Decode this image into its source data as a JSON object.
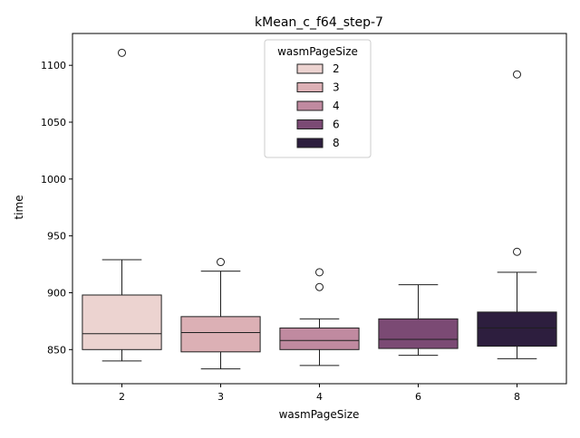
{
  "chart_data": {
    "type": "box",
    "title": "kMean_c_f64_step-7",
    "xlabel": "wasmPageSize",
    "ylabel": "time",
    "categories": [
      "2",
      "3",
      "4",
      "6",
      "8"
    ],
    "ylim": [
      820,
      1128
    ],
    "yticks": [
      850,
      900,
      950,
      1000,
      1050,
      1100
    ],
    "grid": false,
    "legend": {
      "title": "wasmPageSize",
      "placement": "upper-center",
      "entries": [
        "2",
        "3",
        "4",
        "6",
        "8"
      ]
    },
    "boxes": [
      {
        "category": "2",
        "whisker_low": 840,
        "q1": 850,
        "median": 864,
        "q3": 898,
        "whisker_high": 929,
        "outliers": [
          1111
        ],
        "color": "#ecd3d0"
      },
      {
        "category": "3",
        "whisker_low": 833,
        "q1": 848,
        "median": 865,
        "q3": 879,
        "whisker_high": 919,
        "outliers": [
          927
        ],
        "color": "#dcb0b5"
      },
      {
        "category": "4",
        "whisker_low": 836,
        "q1": 850,
        "median": 858,
        "q3": 869,
        "whisker_high": 877,
        "outliers": [
          905,
          918
        ],
        "color": "#c08aa0"
      },
      {
        "category": "6",
        "whisker_low": 845,
        "q1": 851,
        "median": 859,
        "q3": 877,
        "whisker_high": 907,
        "outliers": [],
        "color": "#7b4a74"
      },
      {
        "category": "8",
        "whisker_low": 842,
        "q1": 853,
        "median": 869,
        "q3": 883,
        "whisker_high": 918,
        "outliers": [
          936,
          1092
        ],
        "color": "#2d1e3e"
      }
    ]
  }
}
